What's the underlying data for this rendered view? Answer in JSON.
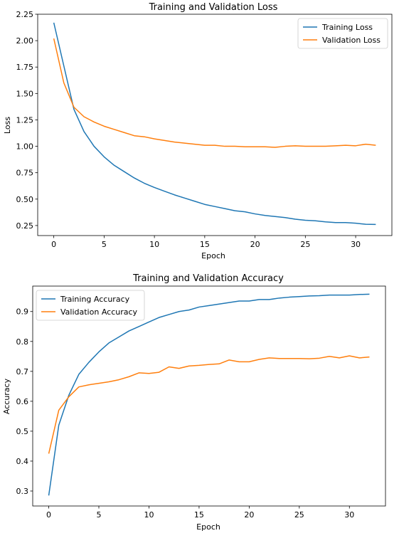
{
  "chart_data": [
    {
      "type": "line",
      "title": "Training and Validation Loss",
      "xlabel": "Epoch",
      "ylabel": "Loss",
      "xlim": [
        -1.6,
        33.6
      ],
      "ylim": [
        0.155,
        2.25
      ],
      "xticks": [
        0,
        5,
        10,
        15,
        20,
        25,
        30
      ],
      "yticks": [
        0.25,
        0.5,
        0.75,
        1.0,
        1.25,
        1.5,
        1.75,
        2.0,
        2.25
      ],
      "ytick_labels": [
        "0.25",
        "0.50",
        "0.75",
        "1.00",
        "1.25",
        "1.50",
        "1.75",
        "2.00",
        "2.25"
      ],
      "grid": false,
      "legend": "top-right",
      "x": [
        0,
        1,
        2,
        3,
        4,
        5,
        6,
        7,
        8,
        9,
        10,
        11,
        12,
        13,
        14,
        15,
        16,
        17,
        18,
        19,
        20,
        21,
        22,
        23,
        24,
        25,
        26,
        27,
        28,
        29,
        30,
        31,
        32
      ],
      "series": [
        {
          "name": "Training Loss",
          "color": "#1f77b4",
          "values": [
            2.17,
            1.76,
            1.35,
            1.14,
            1.0,
            0.9,
            0.82,
            0.76,
            0.7,
            0.65,
            0.61,
            0.575,
            0.54,
            0.51,
            0.48,
            0.45,
            0.43,
            0.41,
            0.39,
            0.38,
            0.36,
            0.345,
            0.335,
            0.325,
            0.31,
            0.3,
            0.295,
            0.285,
            0.278,
            0.278,
            0.272,
            0.262,
            0.26
          ]
        },
        {
          "name": "Validation Loss",
          "color": "#ff7f0e",
          "values": [
            2.02,
            1.6,
            1.37,
            1.28,
            1.23,
            1.19,
            1.16,
            1.13,
            1.1,
            1.09,
            1.07,
            1.055,
            1.04,
            1.03,
            1.02,
            1.01,
            1.01,
            1.0,
            1.0,
            0.995,
            0.995,
            0.995,
            0.99,
            1.0,
            1.005,
            1.0,
            1.0,
            1.0,
            1.005,
            1.01,
            1.005,
            1.02,
            1.01
          ]
        }
      ]
    },
    {
      "type": "line",
      "title": "Training and Validation Accuracy",
      "xlabel": "Epoch",
      "ylabel": "Accuracy",
      "xlim": [
        -1.6,
        33.6
      ],
      "ylim": [
        0.25,
        0.985
      ],
      "xticks": [
        0,
        5,
        10,
        15,
        20,
        25,
        30
      ],
      "yticks": [
        0.3,
        0.4,
        0.5,
        0.6,
        0.7,
        0.8,
        0.9
      ],
      "ytick_labels": [
        "0.3",
        "0.4",
        "0.5",
        "0.6",
        "0.7",
        "0.8",
        "0.9"
      ],
      "grid": false,
      "legend": "top-left",
      "x": [
        0,
        1,
        2,
        3,
        4,
        5,
        6,
        7,
        8,
        9,
        10,
        11,
        12,
        13,
        14,
        15,
        16,
        17,
        18,
        19,
        20,
        21,
        22,
        23,
        24,
        25,
        26,
        27,
        28,
        29,
        30,
        31,
        32
      ],
      "series": [
        {
          "name": "Training Accuracy",
          "color": "#1f77b4",
          "values": [
            0.285,
            0.52,
            0.62,
            0.69,
            0.73,
            0.765,
            0.795,
            0.815,
            0.835,
            0.85,
            0.865,
            0.88,
            0.89,
            0.9,
            0.905,
            0.915,
            0.92,
            0.925,
            0.93,
            0.935,
            0.935,
            0.94,
            0.94,
            0.945,
            0.948,
            0.95,
            0.952,
            0.953,
            0.955,
            0.955,
            0.955,
            0.957,
            0.958
          ]
        },
        {
          "name": "Validation Accuracy",
          "color": "#ff7f0e",
          "values": [
            0.425,
            0.57,
            0.615,
            0.648,
            0.655,
            0.66,
            0.665,
            0.672,
            0.682,
            0.695,
            0.693,
            0.697,
            0.715,
            0.71,
            0.718,
            0.72,
            0.723,
            0.725,
            0.738,
            0.732,
            0.732,
            0.74,
            0.745,
            0.743,
            0.743,
            0.743,
            0.742,
            0.744,
            0.75,
            0.745,
            0.752,
            0.745,
            0.748
          ]
        }
      ]
    }
  ]
}
